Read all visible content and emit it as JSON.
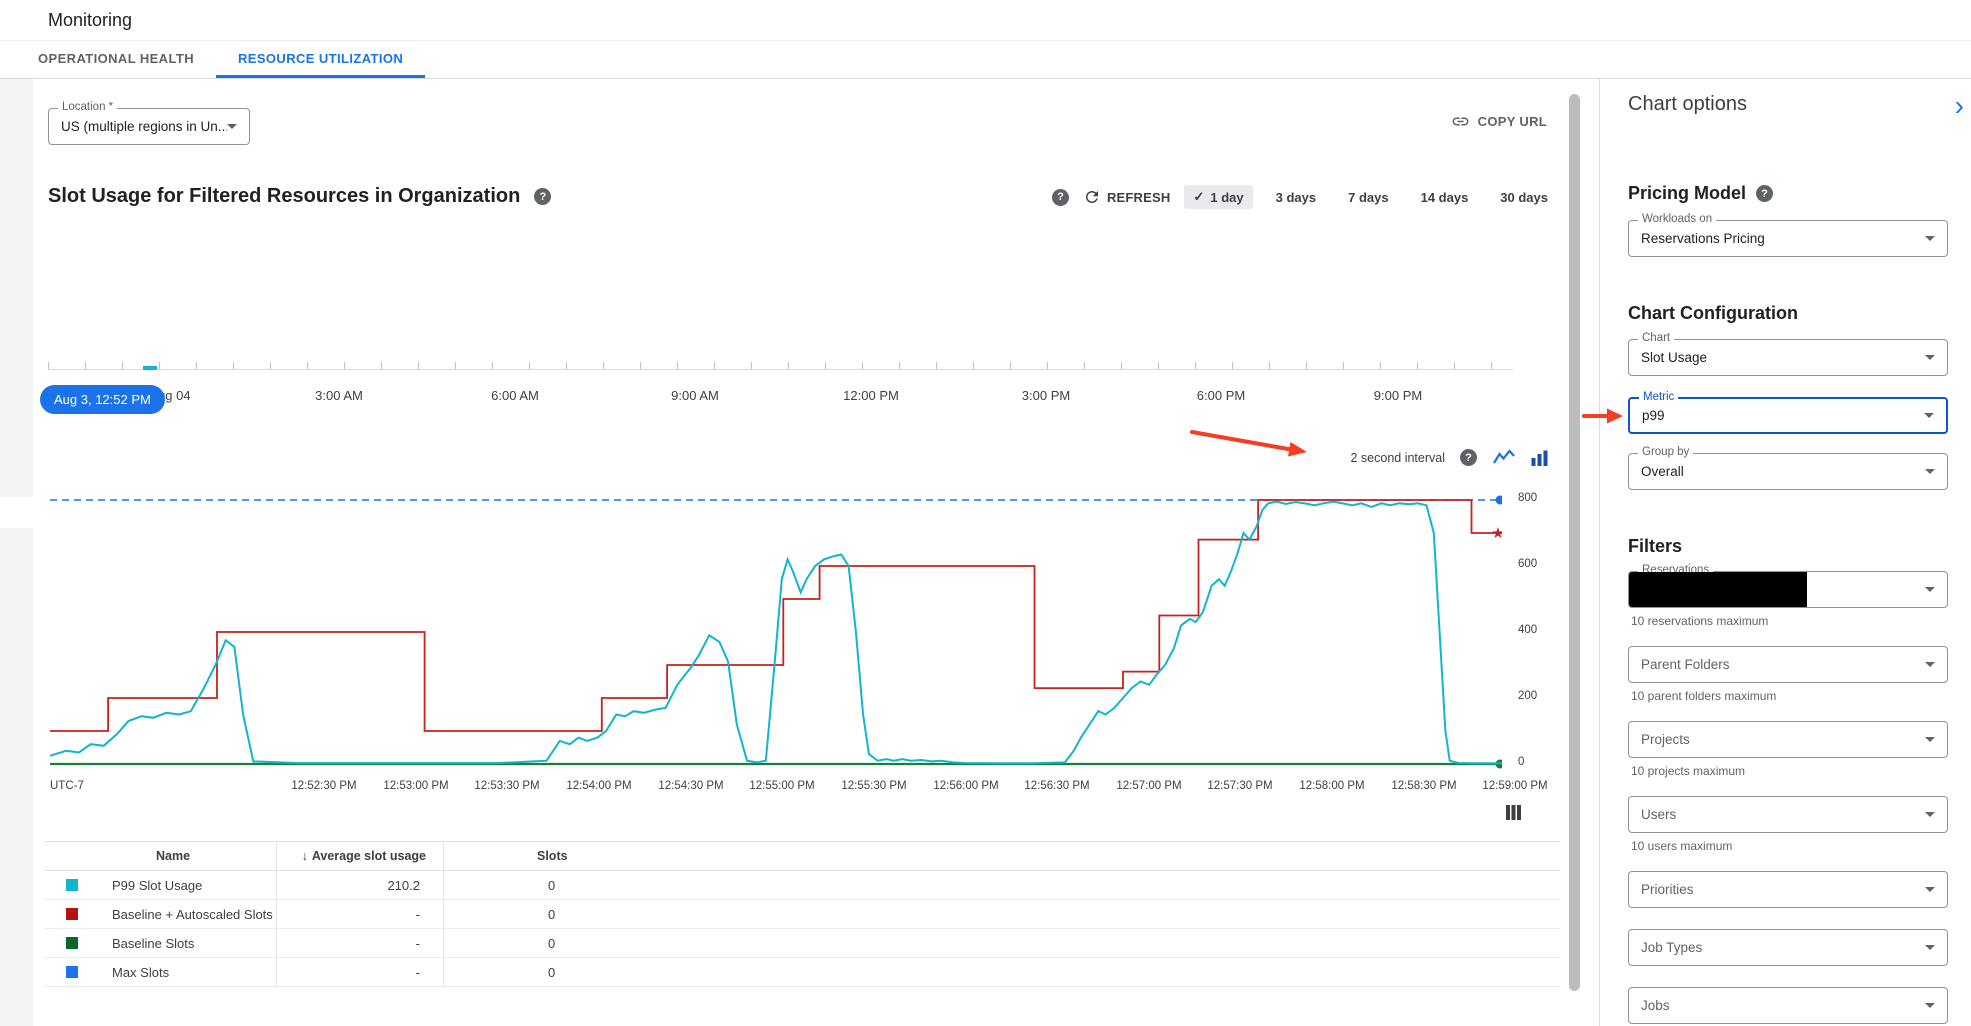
{
  "header": {
    "title": "Monitoring"
  },
  "tabs": [
    {
      "label": "OPERATIONAL HEALTH"
    },
    {
      "label": "RESOURCE UTILIZATION"
    }
  ],
  "toolbar": {
    "location_label": "Location *",
    "location_value": "US (multiple regions in Un...",
    "copy_url": "COPY URL"
  },
  "chart_header": {
    "title": "Slot Usage for Filtered Resources in Organization",
    "refresh_label": "REFRESH",
    "ranges": [
      {
        "label": "1 day",
        "selected": true
      },
      {
        "label": "3 days",
        "selected": false
      },
      {
        "label": "7 days",
        "selected": false
      },
      {
        "label": "14 days",
        "selected": false
      },
      {
        "label": "30 days",
        "selected": false
      }
    ]
  },
  "timeline": {
    "selected_time": "Aug 3, 12:52 PM",
    "labels": [
      "Aug 04",
      "3:00 AM",
      "6:00 AM",
      "9:00 AM",
      "12:00 PM",
      "3:00 PM",
      "6:00 PM",
      "9:00 PM"
    ]
  },
  "chart_controls": {
    "interval_label": "2 second interval"
  },
  "chart_data": {
    "type": "line",
    "title": "Slot Usage for Filtered Resources in Organization",
    "ylim": [
      0,
      800
    ],
    "yticks": [
      800,
      600,
      400,
      200,
      0
    ],
    "xticks": [
      "UTC-7",
      "12:52:30 PM",
      "12:53:00 PM",
      "12:53:30 PM",
      "12:54:00 PM",
      "12:54:30 PM",
      "12:55:00 PM",
      "12:55:30 PM",
      "12:56:00 PM",
      "12:56:30 PM",
      "12:57:00 PM",
      "12:57:30 PM",
      "12:58:00 PM",
      "12:58:30 PM",
      "12:59:00 PM"
    ],
    "grid": false,
    "legend_position": "table-below",
    "series": [
      {
        "name": "Max Slots",
        "color": "#1a73e8",
        "style": "dashed",
        "width": 1.6,
        "end_marker": "dot",
        "points": [
          [
            0,
            800
          ],
          [
            100,
            800
          ]
        ]
      },
      {
        "name": "Baseline Slots",
        "color": "#188038",
        "style": "line",
        "width": 2.2,
        "end_marker": "dot",
        "points": [
          [
            0,
            0
          ],
          [
            100,
            0
          ]
        ]
      },
      {
        "name": "Baseline + Autoscaled Slots",
        "color": "#c5221f",
        "style": "step",
        "width": 1.8,
        "end_marker": "star",
        "points": [
          [
            0,
            100
          ],
          [
            4,
            200
          ],
          [
            11.5,
            400
          ],
          [
            25.8,
            100
          ],
          [
            38,
            200
          ],
          [
            42.5,
            300
          ],
          [
            50.5,
            500
          ],
          [
            53,
            600
          ],
          [
            67.8,
            230
          ],
          [
            73.9,
            280
          ],
          [
            76.4,
            450
          ],
          [
            79.1,
            680
          ],
          [
            83.2,
            800
          ],
          [
            97.9,
            700
          ]
        ]
      },
      {
        "name": "P99 Slot Usage",
        "color": "#12b5cb",
        "style": "line",
        "width": 2,
        "end_marker": "none",
        "points": [
          [
            0,
            25
          ],
          [
            1.1,
            40
          ],
          [
            2,
            35
          ],
          [
            2.8,
            60
          ],
          [
            3.7,
            55
          ],
          [
            4.6,
            90
          ],
          [
            5.4,
            130
          ],
          [
            6.3,
            145
          ],
          [
            7.1,
            140
          ],
          [
            8,
            155
          ],
          [
            8.9,
            150
          ],
          [
            9.7,
            160
          ],
          [
            10.6,
            230
          ],
          [
            11.4,
            300
          ],
          [
            12.1,
            375
          ],
          [
            12.7,
            355
          ],
          [
            13.3,
            150
          ],
          [
            14,
            8
          ],
          [
            17,
            3
          ],
          [
            22,
            3
          ],
          [
            27,
            3
          ],
          [
            31,
            3
          ],
          [
            34.2,
            10
          ],
          [
            35.1,
            70
          ],
          [
            35.8,
            60
          ],
          [
            36.4,
            80
          ],
          [
            37,
            70
          ],
          [
            37.7,
            80
          ],
          [
            38.3,
            100
          ],
          [
            39,
            150
          ],
          [
            39.6,
            145
          ],
          [
            40.2,
            160
          ],
          [
            40.9,
            155
          ],
          [
            41.7,
            165
          ],
          [
            42.4,
            170
          ],
          [
            43.2,
            240
          ],
          [
            44.1,
            290
          ],
          [
            44.7,
            330
          ],
          [
            45.4,
            390
          ],
          [
            46.1,
            370
          ],
          [
            46.7,
            310
          ],
          [
            47.3,
            120
          ],
          [
            48,
            10
          ],
          [
            48.7,
            5
          ],
          [
            49.3,
            10
          ],
          [
            49.9,
            300
          ],
          [
            50.4,
            560
          ],
          [
            50.8,
            620
          ],
          [
            51.2,
            580
          ],
          [
            51.7,
            520
          ],
          [
            52.1,
            560
          ],
          [
            52.7,
            600
          ],
          [
            53.3,
            620
          ],
          [
            54,
            630
          ],
          [
            54.5,
            635
          ],
          [
            55,
            600
          ],
          [
            55.5,
            400
          ],
          [
            56,
            150
          ],
          [
            56.4,
            30
          ],
          [
            57,
            10
          ],
          [
            57.6,
            15
          ],
          [
            58.1,
            10
          ],
          [
            58.7,
            15
          ],
          [
            59.3,
            10
          ],
          [
            60,
            12
          ],
          [
            60.7,
            8
          ],
          [
            61.4,
            10
          ],
          [
            62.2,
            5
          ],
          [
            63,
            3
          ],
          [
            65.2,
            2
          ],
          [
            67.8,
            2
          ],
          [
            69.9,
            5
          ],
          [
            70.5,
            40
          ],
          [
            71,
            80
          ],
          [
            71.6,
            120
          ],
          [
            72.2,
            160
          ],
          [
            72.7,
            150
          ],
          [
            73.3,
            170
          ],
          [
            73.9,
            200
          ],
          [
            74.5,
            230
          ],
          [
            75.1,
            250
          ],
          [
            75.7,
            240
          ],
          [
            76.2,
            270
          ],
          [
            76.8,
            300
          ],
          [
            77.4,
            350
          ],
          [
            77.9,
            420
          ],
          [
            78.5,
            440
          ],
          [
            78.9,
            430
          ],
          [
            79.4,
            460
          ],
          [
            80,
            540
          ],
          [
            80.5,
            560
          ],
          [
            80.9,
            540
          ],
          [
            81.3,
            580
          ],
          [
            81.8,
            640
          ],
          [
            82.2,
            700
          ],
          [
            82.6,
            680
          ],
          [
            83.1,
            720
          ],
          [
            83.5,
            770
          ],
          [
            83.9,
            790
          ],
          [
            84.5,
            795
          ],
          [
            85.1,
            788
          ],
          [
            85.8,
            794
          ],
          [
            86.5,
            789
          ],
          [
            87.1,
            784
          ],
          [
            87.7,
            790
          ],
          [
            88.4,
            795
          ],
          [
            89.1,
            789
          ],
          [
            89.7,
            784
          ],
          [
            90.3,
            790
          ],
          [
            91,
            779
          ],
          [
            91.7,
            790
          ],
          [
            92.3,
            784
          ],
          [
            92.9,
            790
          ],
          [
            93.6,
            787
          ],
          [
            94.2,
            790
          ],
          [
            94.8,
            784
          ],
          [
            95.3,
            700
          ],
          [
            95.7,
            400
          ],
          [
            96.1,
            100
          ],
          [
            96.4,
            10
          ],
          [
            97,
            3
          ],
          [
            97.9,
            2
          ],
          [
            100,
            2
          ]
        ]
      }
    ]
  },
  "legend_table": {
    "headers": {
      "name": "Name",
      "avg": "Average slot usage",
      "slots": "Slots"
    },
    "rows": [
      {
        "color": "#12b5cb",
        "name": "P99 Slot Usage",
        "avg": "210.2",
        "slots": "0"
      },
      {
        "color": "#b31412",
        "name": "Baseline + Autoscaled Slots",
        "avg": "-",
        "slots": "0"
      },
      {
        "color": "#0d652d",
        "name": "Baseline Slots",
        "avg": "-",
        "slots": "0"
      },
      {
        "color": "#1a73e8",
        "name": "Max Slots",
        "avg": "-",
        "slots": "0"
      }
    ]
  },
  "panel": {
    "title": "Chart options",
    "pricing": {
      "heading": "Pricing Model",
      "field_label": "Workloads on",
      "field_value": "Reservations Pricing"
    },
    "config": {
      "heading": "Chart Configuration",
      "chart_label": "Chart",
      "chart_value": "Slot Usage",
      "metric_label": "Metric",
      "metric_value": "p99",
      "groupby_label": "Group by",
      "groupby_value": "Overall"
    },
    "filters": {
      "heading": "Filters",
      "reservations_label": "Reservations",
      "reservations_caption": "10 reservations maximum",
      "parent_folders_label": "Parent Folders",
      "parent_folders_caption": "10 parent folders maximum",
      "projects_label": "Projects",
      "projects_caption": "10 projects maximum",
      "users_label": "Users",
      "users_caption": "10 users maximum",
      "priorities_label": "Priorities",
      "job_types_label": "Job Types",
      "jobs_label": "Jobs"
    }
  },
  "annotations": {
    "color": "#f43d23"
  },
  "icons": {
    "check": "✓",
    "sort_desc": "↓",
    "help": "?",
    "collapse": "›",
    "star": "★"
  }
}
